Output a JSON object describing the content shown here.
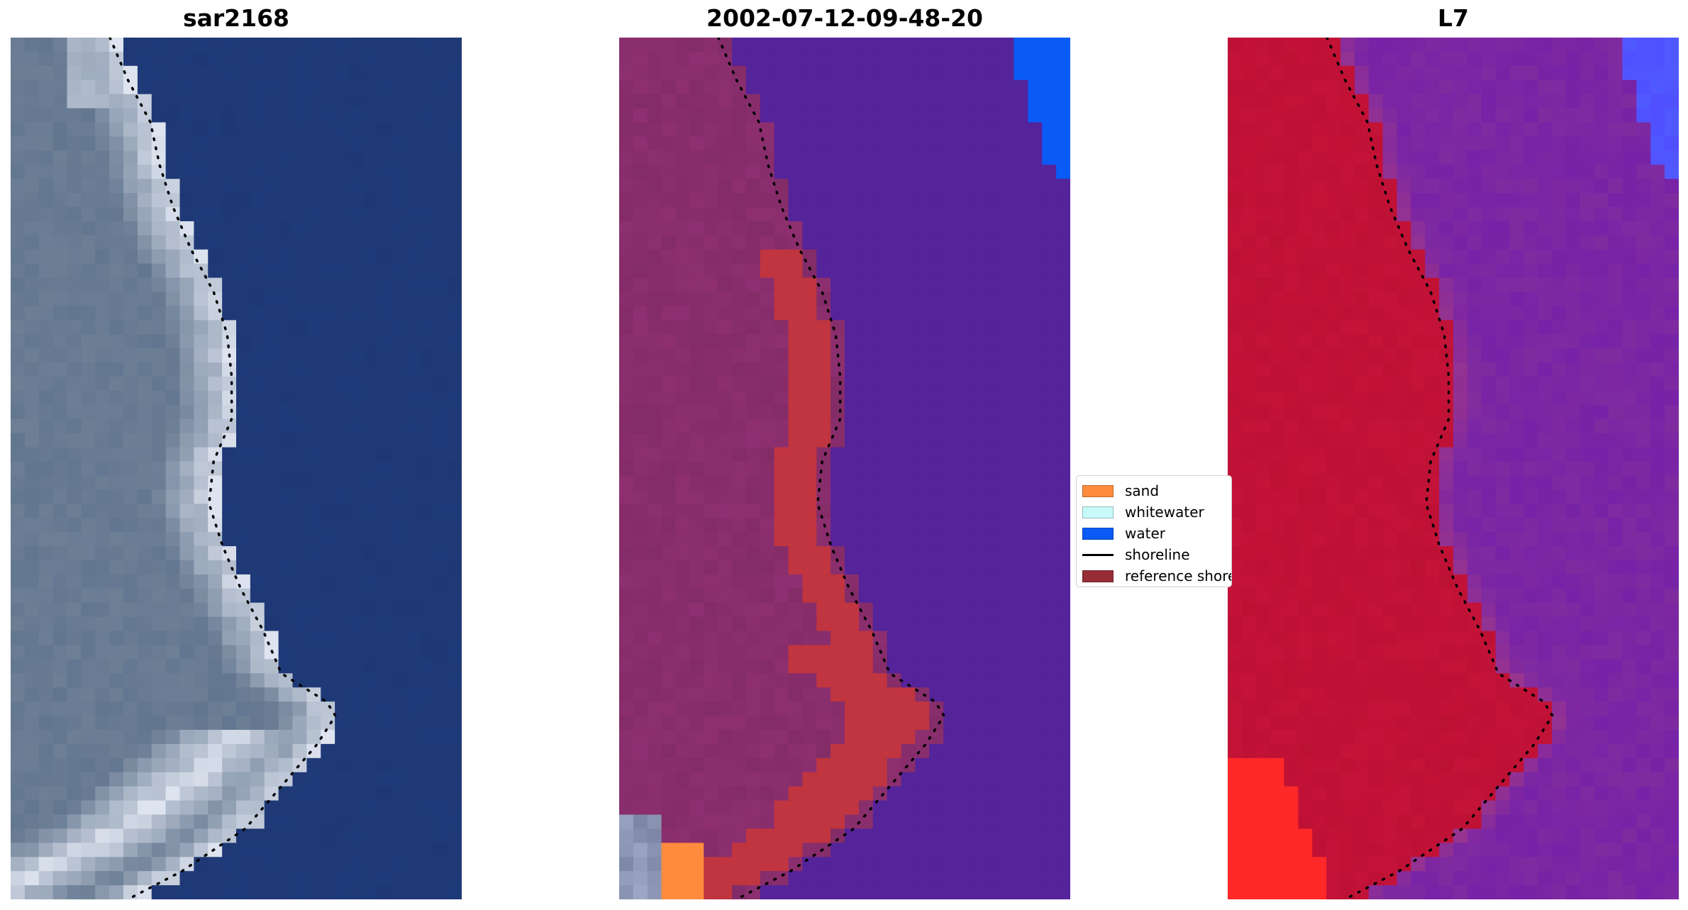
{
  "panels": [
    {
      "title": "sar2168"
    },
    {
      "title": "2002-07-12-09-48-20"
    },
    {
      "title": "L7"
    }
  ],
  "legend": {
    "placement": "center",
    "items": [
      {
        "label": "sand",
        "color": "#ff8c3c",
        "kind": "patch"
      },
      {
        "label": "whitewater",
        "color": "#c8fafa",
        "kind": "patch"
      },
      {
        "label": "water",
        "color": "#0a5af5",
        "kind": "patch"
      },
      {
        "label": "shoreline",
        "color": "#000000",
        "kind": "line"
      },
      {
        "label": "reference shoreline",
        "color": "#962d37",
        "kind": "patch"
      }
    ]
  },
  "colors": {
    "rgb_water": "#1f3a78",
    "rgb_land": "#6d7f95",
    "rgb_whitewater": "#dde3ef",
    "classified_water": "#55239a",
    "classified_land": "#8a2e6d",
    "classified_reference_shoreline": "#c0353f",
    "false_color_land": "#c41338",
    "false_color_water": "#7f2ba0",
    "false_color_bright_land": "#ff2828",
    "false_color_ocean_edge": "#5050ff"
  }
}
